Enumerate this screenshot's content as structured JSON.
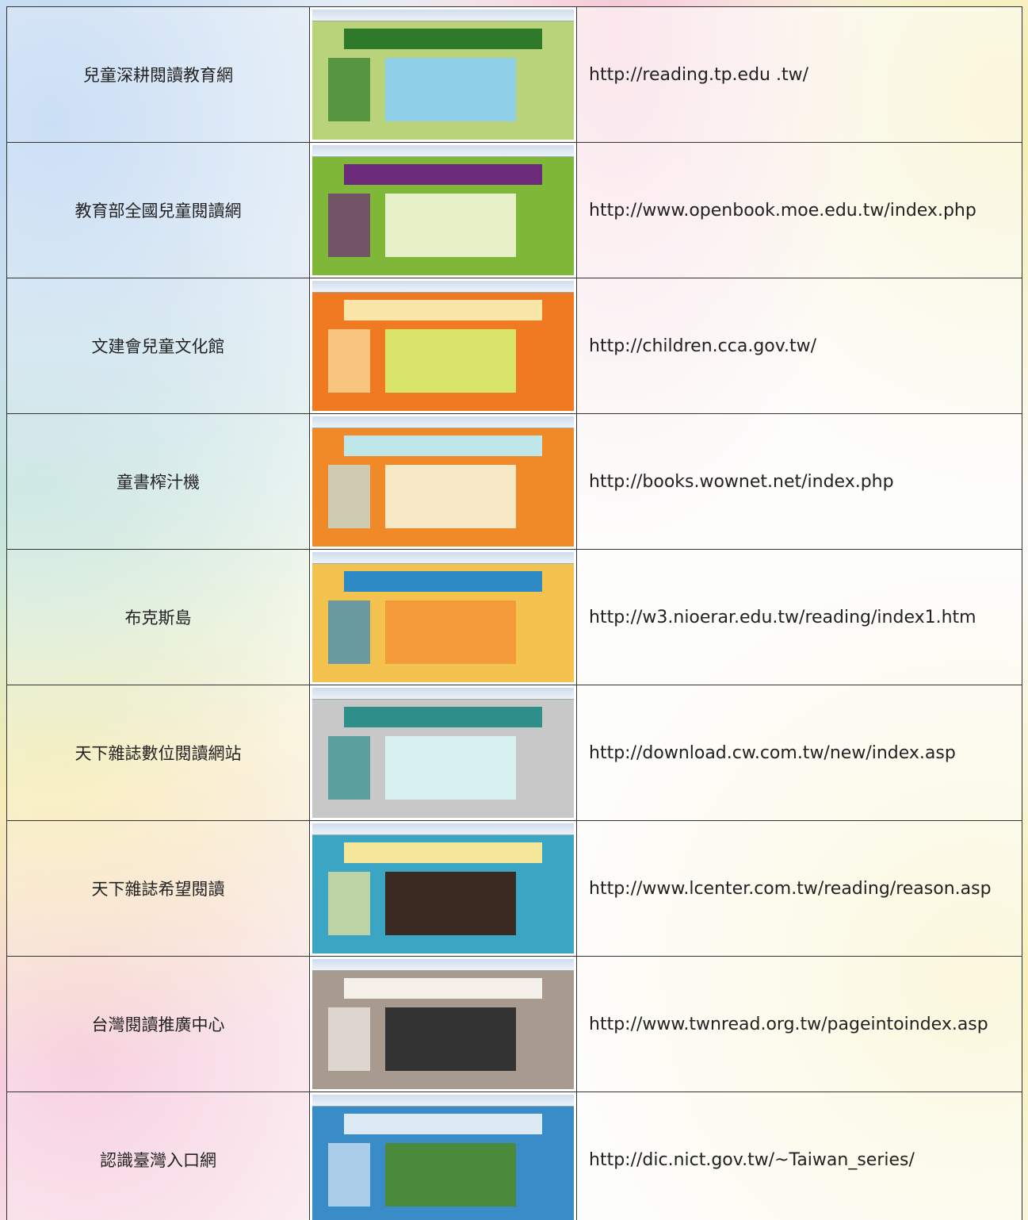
{
  "table": {
    "rows": [
      [
        "兒童深耕閱讀教育網",
        "http://reading.tp.edu .tw/"
      ],
      [
        "教育部全國兒童閱讀網",
        "http://www.openbook.moe.edu.tw/index.php"
      ],
      [
        "文建會兒童文化館",
        "http://children.cca.gov.tw/"
      ],
      [
        "童書榨汁機",
        "http://books.wownet.net/index.php"
      ],
      [
        "布克斯島",
        "http://w3.nioerar.edu.tw/reading/index1.htm"
      ],
      [
        "天下雜誌數位閱讀網站",
        "http://download.cw.com.tw/new/index.asp"
      ],
      [
        "天下雜誌希望閱讀",
        "http://www.lcenter.com.tw/reading/reason.asp"
      ],
      [
        "台灣閱讀推廣中心",
        "http://www.twnread.org.tw/pageintoindex.asp"
      ],
      [
        "認識臺灣入口網",
        "http://dic.nict.gov.tw/~Taiwan_series/"
      ]
    ]
  }
}
